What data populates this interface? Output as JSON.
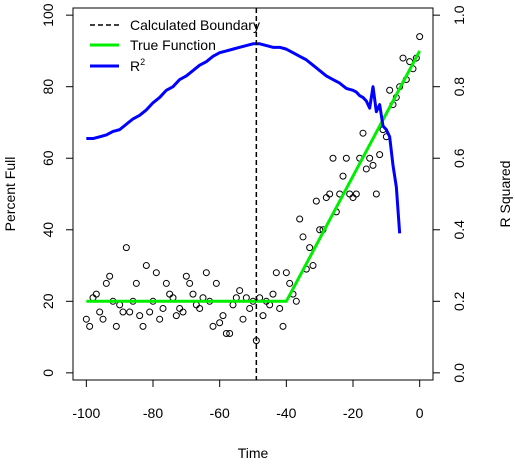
{
  "chart_data": {
    "type": "scatter",
    "xlabel": "Time",
    "ylabel": "Percent Full",
    "y2label": "R Squared",
    "xlim": [
      -104,
      4
    ],
    "ylim": [
      -2,
      102
    ],
    "y2lim": [
      -0.02,
      1.02
    ],
    "x_ticks": [
      -100,
      -80,
      -60,
      -40,
      -20,
      0
    ],
    "y_ticks": [
      0,
      20,
      40,
      60,
      80,
      100
    ],
    "y2_ticks": [
      0.0,
      0.2,
      0.4,
      0.6,
      0.8,
      1.0
    ],
    "grid": false,
    "legend": {
      "position": "top-left",
      "entries": [
        {
          "label": "Calculated Boundary",
          "color": "#000000",
          "style": "dashed"
        },
        {
          "label": "True Function",
          "color": "#00ee00",
          "style": "solid"
        },
        {
          "label": "R",
          "superscript": "2",
          "color": "#0000ff",
          "style": "solid"
        }
      ]
    },
    "boundary_x": -49,
    "true_function": {
      "name": "True Function",
      "color": "#00ee00",
      "x": [
        -100,
        -40,
        0
      ],
      "y": [
        20,
        20,
        90
      ]
    },
    "r_squared": {
      "name": "R2",
      "color": "#0000ff",
      "x": [
        -100,
        -98,
        -96,
        -94,
        -92,
        -90,
        -88,
        -86,
        -84,
        -82,
        -80,
        -78,
        -76,
        -74,
        -72,
        -70,
        -68,
        -66,
        -64,
        -62,
        -60,
        -58,
        -56,
        -54,
        -52,
        -50,
        -48,
        -46,
        -44,
        -42,
        -40,
        -38,
        -36,
        -34,
        -32,
        -30,
        -28,
        -26,
        -24,
        -22,
        -20,
        -19,
        -18,
        -17,
        -16,
        -15,
        -14,
        -13,
        -12,
        -11,
        -10,
        -9,
        -8,
        -7,
        -6
      ],
      "y": [
        0.655,
        0.655,
        0.66,
        0.665,
        0.675,
        0.68,
        0.695,
        0.71,
        0.72,
        0.735,
        0.755,
        0.77,
        0.79,
        0.8,
        0.82,
        0.83,
        0.845,
        0.86,
        0.87,
        0.885,
        0.895,
        0.9,
        0.905,
        0.91,
        0.915,
        0.92,
        0.92,
        0.915,
        0.91,
        0.91,
        0.905,
        0.895,
        0.885,
        0.875,
        0.86,
        0.845,
        0.83,
        0.82,
        0.81,
        0.795,
        0.79,
        0.785,
        0.775,
        0.77,
        0.76,
        0.74,
        0.8,
        0.73,
        0.75,
        0.69,
        0.68,
        0.66,
        0.58,
        0.52,
        0.39
      ]
    },
    "points": {
      "name": "Percent Full",
      "x": [
        -100,
        -99,
        -98,
        -97,
        -96,
        -95,
        -94,
        -93,
        -92,
        -91,
        -90,
        -89,
        -88,
        -87,
        -86,
        -85,
        -84,
        -83,
        -82,
        -81,
        -80,
        -79,
        -78,
        -77,
        -76,
        -75,
        -74,
        -73,
        -72,
        -71,
        -70,
        -69,
        -68,
        -67,
        -66,
        -65,
        -64,
        -63,
        -62,
        -61,
        -60,
        -59,
        -58,
        -57,
        -56,
        -55,
        -54,
        -53,
        -52,
        -51,
        -50,
        -49,
        -48,
        -47,
        -46,
        -45,
        -44,
        -43,
        -42,
        -41,
        -40,
        -39,
        -38,
        -37,
        -36,
        -35,
        -34,
        -33,
        -32,
        -31,
        -30,
        -29,
        -28,
        -27,
        -26,
        -25,
        -24,
        -23,
        -22,
        -21,
        -20,
        -19,
        -18,
        -17,
        -16,
        -15,
        -14,
        -13,
        -12,
        -11,
        -10,
        -9,
        -8,
        -7,
        -6,
        -5,
        -4,
        -3,
        -2,
        -1,
        0
      ],
      "y": [
        15,
        13,
        21,
        22,
        17,
        15,
        25,
        27,
        20,
        13,
        19,
        17,
        35,
        17,
        20,
        25,
        16,
        13,
        30,
        17,
        20,
        28,
        15,
        18,
        25,
        22,
        21,
        16,
        18,
        17,
        27,
        25,
        22,
        19,
        18,
        21,
        28,
        20,
        13,
        25,
        14,
        16,
        11,
        11,
        19,
        21,
        23,
        15,
        21,
        18,
        20,
        9,
        21,
        16,
        20,
        19,
        22,
        28,
        18,
        13,
        28,
        25,
        22,
        20,
        43,
        38,
        29,
        35,
        30,
        48,
        40,
        40,
        49,
        50,
        60,
        45,
        50,
        55,
        60,
        50,
        49,
        50,
        60,
        67,
        57,
        60,
        58,
        50,
        61,
        68,
        66,
        79,
        75,
        77,
        80,
        88,
        82,
        87,
        85,
        88,
        94
      ]
    }
  }
}
